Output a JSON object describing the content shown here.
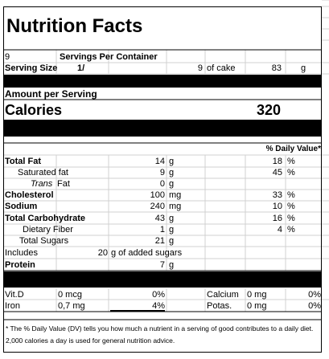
{
  "title": "Nutrition Facts",
  "servings": {
    "count": 9,
    "label": "Servings Per Container"
  },
  "serving_size": {
    "label": "Serving Size",
    "fraction": "1/",
    "denominator": 9,
    "unit_label": "of cake",
    "grams": 83,
    "unit": "g"
  },
  "amount_per_serving": "Amount per Serving",
  "calories": {
    "label": "Calories",
    "value": 320
  },
  "daily_value_header": "% Daily Value*",
  "nutrients": [
    {
      "name": "Total Fat",
      "amount": 14,
      "unit": "g",
      "dv": 18,
      "dv_unit": "%"
    },
    {
      "name": "Saturated fat",
      "amount": 9,
      "unit": "g",
      "dv": 45,
      "dv_unit": "%"
    },
    {
      "name": "Trans",
      "name_suffix": "Fat",
      "amount": 0,
      "unit": "g"
    },
    {
      "name": "Cholesterol",
      "amount": 100,
      "unit": "mg",
      "dv": 33,
      "dv_unit": "%"
    },
    {
      "name": "Sodium",
      "amount": 240,
      "unit": "mg",
      "dv": 10,
      "dv_unit": "%"
    },
    {
      "name": "Total Carbohydrate",
      "amount": 43,
      "unit": "g",
      "dv": 16,
      "dv_unit": "%"
    },
    {
      "name": "Dietary Fiber",
      "amount": 1,
      "unit": "g",
      "dv": 4,
      "dv_unit": "%"
    },
    {
      "name": "Total Sugars",
      "amount": 21,
      "unit": "g"
    }
  ],
  "added_sugars": {
    "label": "Includes",
    "amount": 20,
    "unit_label": "g of added sugars"
  },
  "protein": {
    "name": "Protein",
    "amount": 7,
    "unit": "g"
  },
  "vitamins": [
    {
      "name": "Vit.D",
      "amount": "0 mcg",
      "dv": "0%",
      "name2": "Calcium",
      "amount2": "0 mg",
      "dv2": "0%"
    },
    {
      "name": "Iron",
      "amount": "0,7 mg",
      "dv": "4%",
      "name2": "Potas.",
      "amount2": "0 mg",
      "dv2": "0%"
    }
  ],
  "footnote": "* The % Daily Value (DV) tells you how much a nutrient in a serving of good contributes to a daily diet. 2,000 calories a day is used for general nutrition advice."
}
